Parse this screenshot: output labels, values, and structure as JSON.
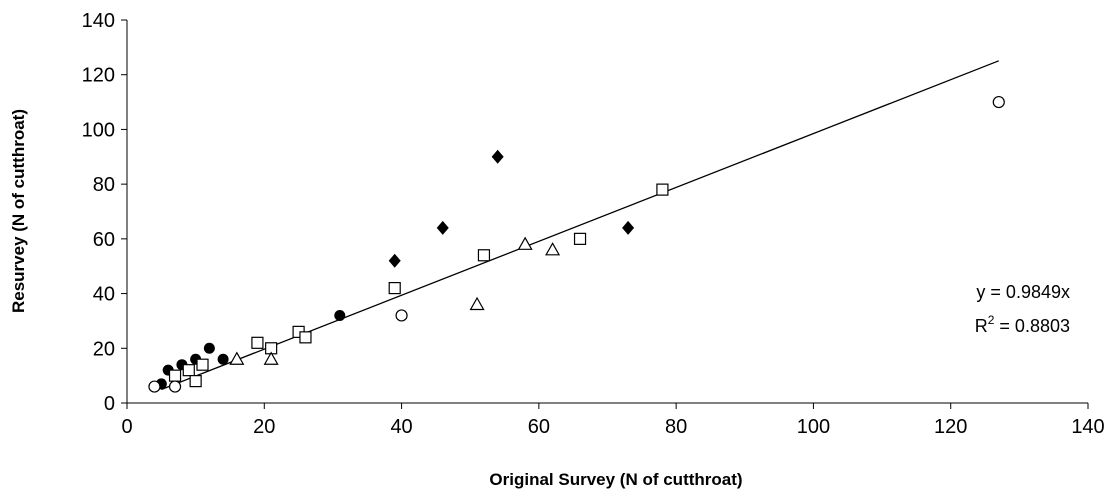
{
  "chart_data": {
    "type": "scatter",
    "title": "",
    "xlabel": "Original Survey (N of cutthroat)",
    "ylabel": "Resurvey (N of cutthroat)",
    "xlim": [
      0,
      140
    ],
    "ylim": [
      0,
      140
    ],
    "xticks": [
      "0",
      "20",
      "40",
      "60",
      "80",
      "100",
      "120",
      "140"
    ],
    "yticks": [
      "0",
      "20",
      "40",
      "60",
      "80",
      "100",
      "120",
      "140"
    ],
    "grid": false,
    "legend": "none",
    "series": [
      {
        "marker": "circle-filled",
        "points": [
          [
            5,
            7
          ],
          [
            6,
            12
          ],
          [
            8,
            14
          ],
          [
            10,
            16
          ],
          [
            12,
            20
          ],
          [
            14,
            16
          ],
          [
            31,
            32
          ]
        ]
      },
      {
        "marker": "diamond-filled",
        "points": [
          [
            39,
            52
          ],
          [
            46,
            64
          ],
          [
            54,
            90
          ],
          [
            73,
            64
          ]
        ]
      },
      {
        "marker": "square-open",
        "points": [
          [
            7,
            10
          ],
          [
            9,
            12
          ],
          [
            10,
            8
          ],
          [
            11,
            14
          ],
          [
            19,
            22
          ],
          [
            21,
            20
          ],
          [
            25,
            26
          ],
          [
            26,
            24
          ],
          [
            39,
            42
          ],
          [
            52,
            54
          ],
          [
            66,
            60
          ],
          [
            78,
            78
          ]
        ]
      },
      {
        "marker": "triangle-open",
        "points": [
          [
            16,
            16
          ],
          [
            21,
            16
          ],
          [
            51,
            36
          ],
          [
            58,
            58
          ],
          [
            62,
            56
          ]
        ]
      },
      {
        "marker": "circle-open",
        "points": [
          [
            4,
            6
          ],
          [
            7,
            6
          ],
          [
            40,
            32
          ],
          [
            127,
            110
          ]
        ]
      }
    ],
    "trendline": {
      "equation": "y = 0.9849x",
      "r2_label": "R",
      "r2_exp": "2",
      "r2_value": " = 0.8803",
      "slope": 0.9849,
      "x_range": [
        5,
        127
      ]
    }
  }
}
